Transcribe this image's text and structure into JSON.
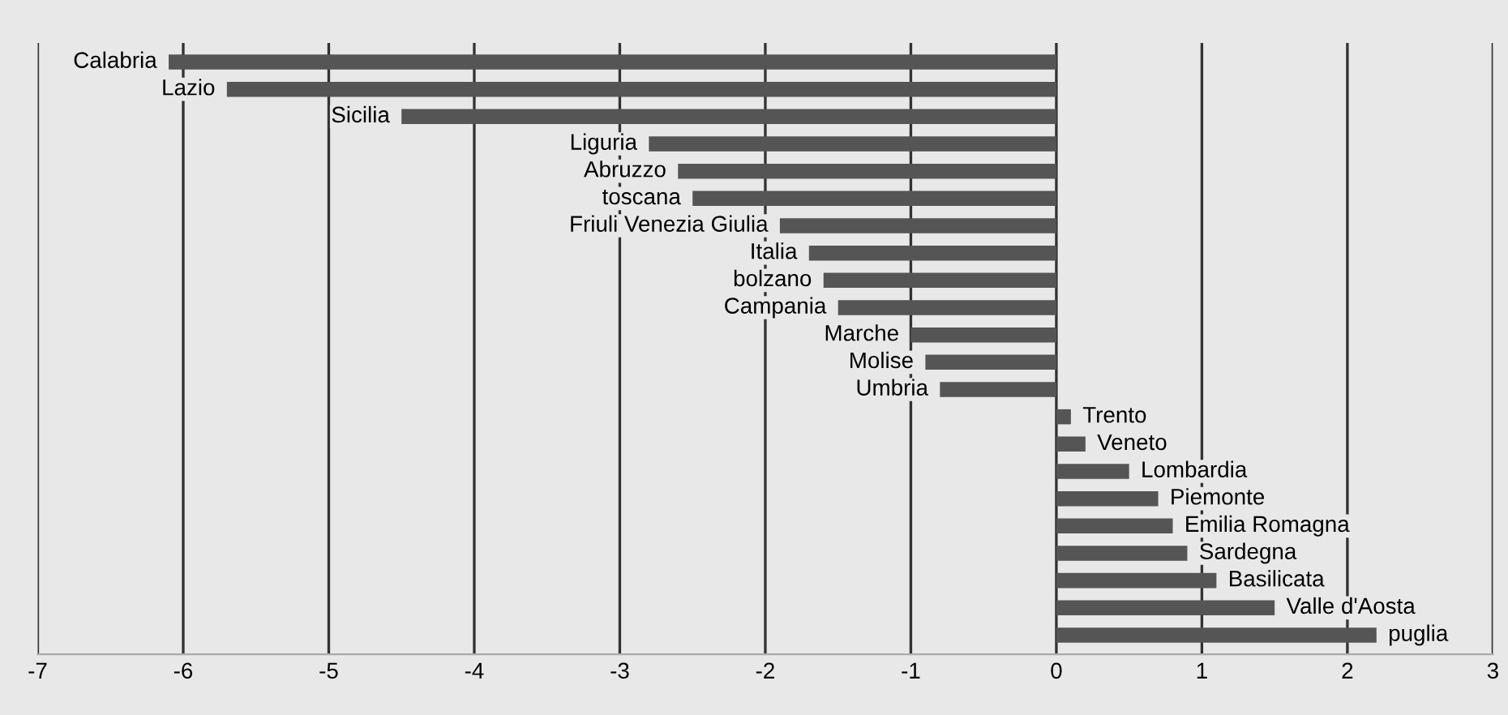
{
  "chart_data": {
    "type": "bar",
    "orientation": "horizontal",
    "categories": [
      "Calabria",
      "Lazio",
      "Sicilia",
      "Liguria",
      "Abruzzo",
      "toscana",
      "Friuli Venezia Giulia",
      "Italia",
      "bolzano",
      "Campania",
      "Marche",
      "Molise",
      "Umbria",
      "Trento",
      "Veneto",
      "Lombardia",
      "Piemonte",
      "Emilia Romagna",
      "Sardegna",
      "Basilicata",
      "Valle d'Aosta",
      "puglia"
    ],
    "values": [
      -6.1,
      -5.7,
      -4.5,
      -2.8,
      -2.6,
      -2.5,
      -1.9,
      -1.7,
      -1.6,
      -1.5,
      -1.0,
      -0.9,
      -0.8,
      0.1,
      0.2,
      0.5,
      0.7,
      0.8,
      0.9,
      1.1,
      1.5,
      2.2
    ],
    "color": "#555555",
    "xlim": [
      -7,
      3
    ],
    "xticks": [
      -7,
      -6,
      -5,
      -4,
      -3,
      -2,
      -1,
      0,
      1,
      2,
      3
    ],
    "grid": "x",
    "tick_labels": "x"
  }
}
